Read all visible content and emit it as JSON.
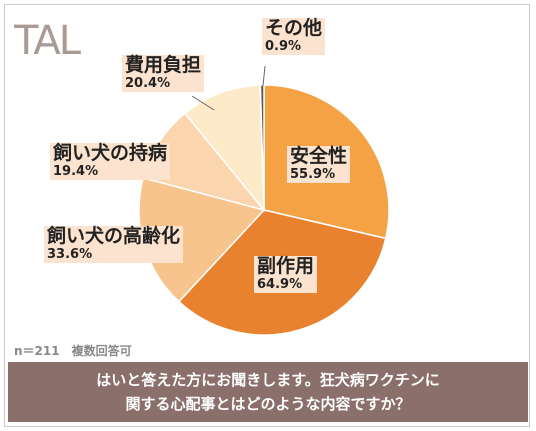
{
  "logo_text": "TAL",
  "sample_note": "n＝211　複数回答可",
  "question_line1": "はいと答えた方にお聞きします。狂犬病ワクチンに",
  "question_line2": "関する心配事とはどのような内容ですか？",
  "colors": {
    "safety": "#f5a245",
    "side_effect": "#e8822e",
    "aging": "#f7c48d",
    "chronic": "#fad5ad",
    "cost": "#fdeac9",
    "other": "#555555",
    "label_bg": "#fbe3cf",
    "footer_bg": "#8a6f6a"
  },
  "chart_data": {
    "type": "pie",
    "title": "",
    "note": "複数回答可 — percentages sum above 100%",
    "slices": [
      {
        "label": "安全性",
        "percent": 55.9,
        "percent_text": "55.9%"
      },
      {
        "label": "副作用",
        "percent": 64.9,
        "percent_text": "64.9%"
      },
      {
        "label": "飼い犬の高齢化",
        "percent": 33.6,
        "percent_text": "33.6%"
      },
      {
        "label": "飼い犬の持病",
        "percent": 19.4,
        "percent_text": "19.4%"
      },
      {
        "label": "費用負担",
        "percent": 20.4,
        "percent_text": "20.4%"
      },
      {
        "label": "その他",
        "percent": 0.9,
        "percent_text": "0.9%"
      }
    ]
  }
}
